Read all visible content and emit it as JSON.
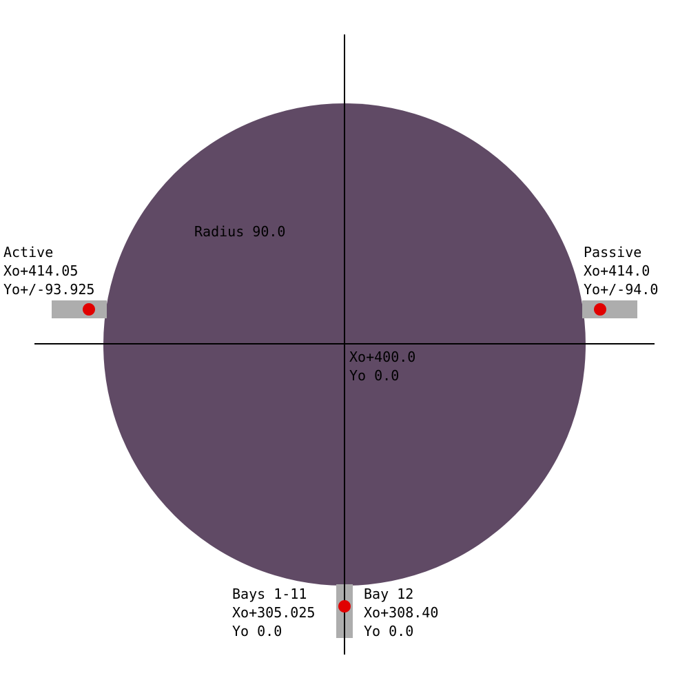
{
  "colors": {
    "disc": "#604a65",
    "bracket": "#adadad",
    "marker": "#e10000",
    "axis": "#000000",
    "background": "#ffffff"
  },
  "disc": {
    "radius_label": "Radius 90.0"
  },
  "center": {
    "x_label": "Xo+400.0",
    "y_label": "Yo 0.0"
  },
  "active": {
    "title": "Active",
    "x_label": "Xo+414.05",
    "y_label": "Yo+/-93.925"
  },
  "passive": {
    "title": "Passive",
    "x_label": "Xo+414.0",
    "y_label": "Yo+/-94.0"
  },
  "bays_1_11": {
    "title": "Bays 1-11",
    "x_label": "Xo+305.025",
    "y_label": "Yo 0.0"
  },
  "bay_12": {
    "title": "Bay 12",
    "x_label": "Xo+308.40",
    "y_label": "Yo 0.0"
  }
}
